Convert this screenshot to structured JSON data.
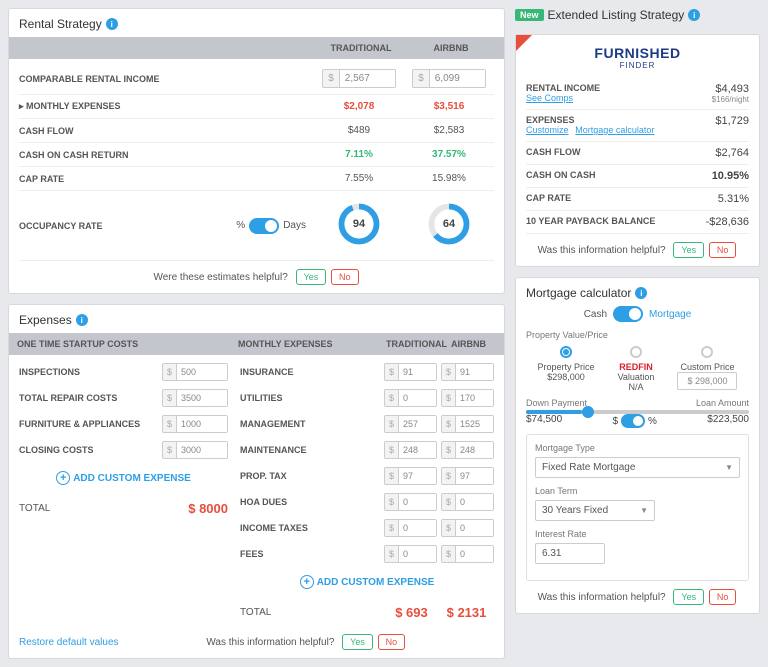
{
  "rental_strategy": {
    "title": "Rental Strategy",
    "col_traditional": "TRADITIONAL",
    "col_airbnb": "AIRBNB",
    "comparable_label": "COMPARABLE RENTAL INCOME",
    "comparable_traditional": "2,567",
    "comparable_airbnb": "6,099",
    "monthly_expenses_label": "▸ MONTHLY EXPENSES",
    "monthly_expenses_t": "$2,078",
    "monthly_expenses_a": "$3,516",
    "cash_flow_label": "CASH FLOW",
    "cash_flow_t": "$489",
    "cash_flow_a": "$2,583",
    "coc_label": "CASH ON CASH RETURN",
    "coc_t": "7.11%",
    "coc_a": "37.57%",
    "cap_label": "CAP RATE",
    "cap_t": "7.55%",
    "cap_a": "15.98%",
    "occupancy_label": "OCCUPANCY RATE",
    "toggle_left": "%",
    "toggle_right": "Days",
    "gauge_t": "94",
    "gauge_a": "64",
    "helpful_text": "Were these estimates helpful?",
    "yes": "Yes",
    "no": "No",
    "gauge_t_pct": 94,
    "gauge_a_pct": 64,
    "gauge_color": "#2e9ee5",
    "gauge_bg": "#e5e5e5"
  },
  "extended": {
    "new_badge": "New",
    "title": "Extended Listing Strategy",
    "brand_top": "FURNISHED",
    "brand_bottom": "FINDER",
    "rental_income_label": "RENTAL INCOME",
    "rental_income_val": "$4,493",
    "rental_income_sub1": "See Comps",
    "rental_income_sub2": "$166/night",
    "expenses_label": "EXPENSES",
    "expenses_val": "$1,729",
    "expenses_sub1": "Customize",
    "expenses_sub2": "Mortgage calculator",
    "cash_flow_label": "CASH FLOW",
    "cash_flow_val": "$2,764",
    "coc_label": "CASH ON CASH",
    "coc_val": "10.95%",
    "cap_label": "CAP RATE",
    "cap_val": "5.31%",
    "payback_label": "10 YEAR PAYBACK BALANCE",
    "payback_val": "-$28,636",
    "helpful_text": "Was this information helpful?",
    "yes": "Yes",
    "no": "No"
  },
  "expenses": {
    "title": "Expenses",
    "startup_header": "ONE TIME STARTUP COSTS",
    "monthly_header": "MONTHLY EXPENSES",
    "col_t": "TRADITIONAL",
    "col_a": "AIRBNB",
    "startup": [
      {
        "label": "INSPECTIONS",
        "val": "500"
      },
      {
        "label": "TOTAL REPAIR COSTS",
        "val": "3500"
      },
      {
        "label": "FURNITURE & APPLIANCES",
        "val": "1000"
      },
      {
        "label": "CLOSING COSTS",
        "val": "3000"
      }
    ],
    "monthly": [
      {
        "label": "INSURANCE",
        "t": "91",
        "a": "91"
      },
      {
        "label": "UTILITIES",
        "t": "0",
        "a": "170"
      },
      {
        "label": "MANAGEMENT",
        "t": "257",
        "a": "1525"
      },
      {
        "label": "MAINTENANCE",
        "t": "248",
        "a": "248"
      },
      {
        "label": "PROP. TAX",
        "t": "97",
        "a": "97"
      },
      {
        "label": "HOA DUES",
        "t": "0",
        "a": "0"
      },
      {
        "label": "INCOME TAXES",
        "t": "0",
        "a": "0"
      },
      {
        "label": "FEES",
        "t": "0",
        "a": "0"
      }
    ],
    "add_custom": "ADD CUSTOM EXPENSE",
    "total_label": "TOTAL",
    "startup_total": "$ 8000",
    "monthly_total_t": "$ 693",
    "monthly_total_a": "$ 2131",
    "restore": "Restore default values",
    "helpful_text": "Was this information helpful?",
    "yes": "Yes",
    "no": "No"
  },
  "mortgage": {
    "title": "Mortgage calculator",
    "tab_cash": "Cash",
    "tab_mortgage": "Mortgage",
    "prop_val_label": "Property Value/Price",
    "opt1_label": "Property Price",
    "opt1_val": "$298,000",
    "opt2_brand": "REDFIN",
    "opt2_label": "Valuation",
    "opt2_val": "N/A",
    "opt3_label": "Custom Price",
    "opt3_val": "298,000",
    "down_label": "Down Payment",
    "loan_label": "Loan Amount",
    "down_val": "$74,500",
    "loan_val": "$223,500",
    "slider_pct": 25,
    "toggle_d": "$",
    "toggle_p": "%",
    "type_label": "Mortgage Type",
    "type_val": "Fixed Rate Mortgage",
    "term_label": "Loan Term",
    "term_val": "30 Years Fixed",
    "rate_label": "Interest Rate",
    "rate_val": "6.31",
    "helpful_text": "Was this information helpful?",
    "yes": "Yes",
    "no": "No"
  },
  "colors": {
    "accent_blue": "#2e9ee5",
    "green": "#37b877",
    "red": "#e74e3d",
    "header_gray": "#c3c6cd"
  }
}
